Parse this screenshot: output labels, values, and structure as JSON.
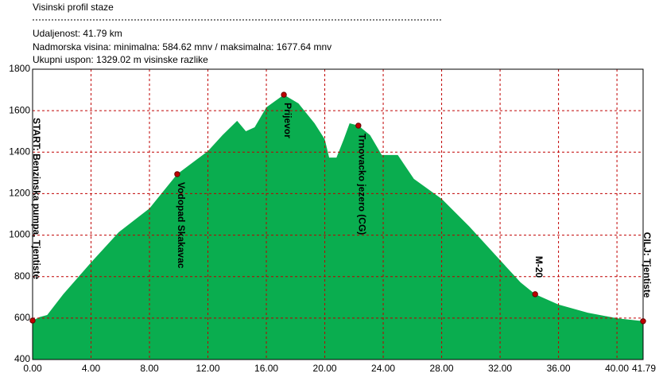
{
  "header": {
    "title": "Visinski profil staze",
    "distance": "Udaljenost: 41.79 km",
    "altitude": "Nadmorska visina:  minimalna: 584.62 mnv   /  maksimalna: 1677.64 mnv",
    "ascent": "Ukupni uspon: 1329.02 m visinske razlike"
  },
  "chart_data": {
    "type": "area",
    "color": "#0aad4f",
    "x": [
      0,
      0.5,
      1,
      2.1,
      4,
      5.9,
      8,
      9.9,
      12,
      13,
      14,
      14.6,
      15.2,
      16,
      17.2,
      18.2,
      19.3,
      20,
      20.3,
      20.8,
      21.3,
      21.7,
      22.3,
      23.1,
      23.9,
      25,
      26.1,
      28,
      29.9,
      31.9,
      33.4,
      34.4,
      36,
      38,
      40,
      41.79
    ],
    "values": [
      588,
      605,
      615,
      715,
      868,
      1014,
      1129,
      1294,
      1405,
      1482,
      1551,
      1501,
      1520,
      1616,
      1677,
      1635,
      1539,
      1462,
      1374,
      1374,
      1462,
      1539,
      1528,
      1482,
      1386,
      1386,
      1271,
      1175,
      1041,
      887,
      772,
      715,
      665,
      626,
      599,
      585
    ],
    "xlim": [
      0,
      41.79
    ],
    "ylim": [
      400,
      1800
    ],
    "xticks": [
      {
        "value": 0,
        "label": "0.00"
      },
      {
        "value": 4,
        "label": "4.00"
      },
      {
        "value": 8,
        "label": "8.00"
      },
      {
        "value": 12,
        "label": "12.00"
      },
      {
        "value": 16,
        "label": "16.00"
      },
      {
        "value": 20,
        "label": "20.00"
      },
      {
        "value": 24,
        "label": "24.00"
      },
      {
        "value": 28,
        "label": "28.00"
      },
      {
        "value": 32,
        "label": "32.00"
      },
      {
        "value": 36,
        "label": "36.00"
      },
      {
        "value": 40,
        "label": "40.00"
      },
      {
        "value": 41.79,
        "label": "41.79"
      }
    ],
    "yticks": [
      400,
      600,
      800,
      1000,
      1200,
      1400,
      1600,
      1800
    ],
    "grid": true,
    "waypoints": [
      {
        "name": "START: Benzinska pumpa, Tjentiste",
        "x": 0,
        "y": 588
      },
      {
        "name": "Vodopad Skakavac",
        "x": 9.9,
        "y": 1294
      },
      {
        "name": "Prijevor",
        "x": 17.2,
        "y": 1677
      },
      {
        "name": "Trnovacko jezero (CG)",
        "x": 22.3,
        "y": 1528
      },
      {
        "name": "M-20",
        "x": 34.4,
        "y": 715
      },
      {
        "name": "CILJ: Tjentiste",
        "x": 41.79,
        "y": 585
      }
    ]
  }
}
